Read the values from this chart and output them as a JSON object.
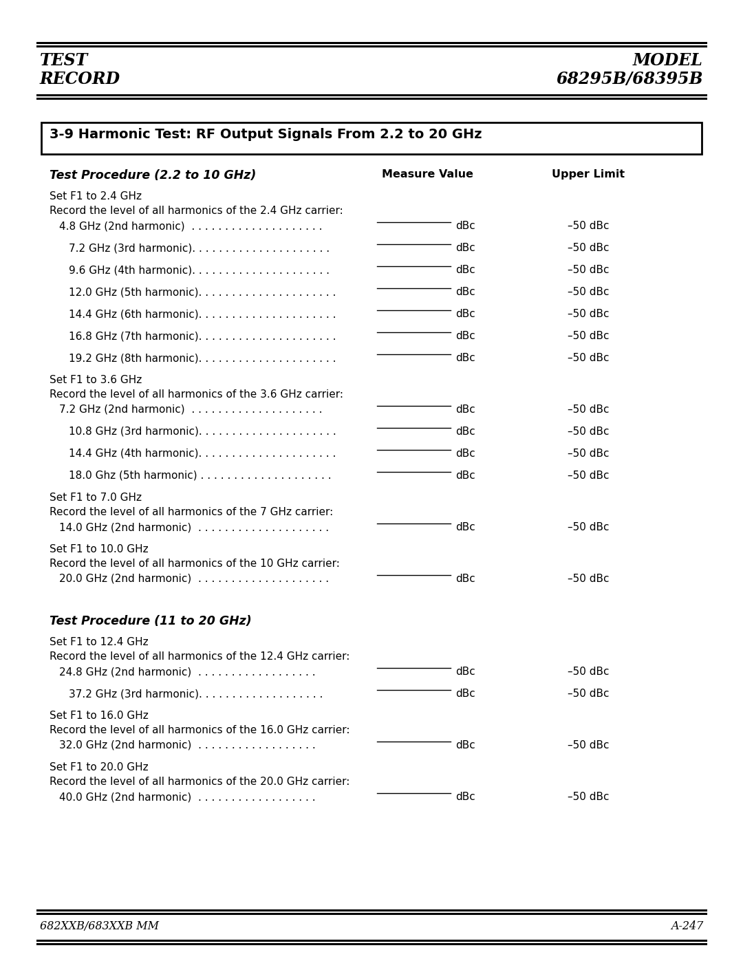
{
  "bg_color": "#ffffff",
  "page_width": 10.8,
  "page_height": 13.97,
  "header": {
    "left_line1": "TEST",
    "left_line2": "RECORD",
    "right_line1": "MODEL",
    "right_line2": "68295B/68395B"
  },
  "footer": {
    "left": "682XXB/683XXB MM",
    "right": "A-247"
  },
  "box_title": "3-9 Harmonic Test: RF Output Signals From 2.2 to 20 GHz",
  "section1_title": "Test Procedure (2.2 to 10 GHz)",
  "col_measure": "Measure Value",
  "col_upper": "Upper Limit",
  "section2_title": "Test Procedure (11 to 20 GHz)",
  "rows": [
    {
      "type": "set",
      "text": "Set F1 to 2.4 GHz"
    },
    {
      "type": "record",
      "text": "Record the level of all harmonics of the 2.4 GHz carrier:"
    },
    {
      "type": "measure",
      "indent": 1,
      "text": "4.8 GHz (2nd harmonic)  . . . . . . . . . . . . . . . . . . . .",
      "upper": "–50 dBc"
    },
    {
      "type": "measure",
      "indent": 2,
      "text": "7.2 GHz (3rd harmonic). . . . . . . . . . . . . . . . . . . . .",
      "upper": "–50 dBc"
    },
    {
      "type": "measure",
      "indent": 2,
      "text": "9.6 GHz (4th harmonic). . . . . . . . . . . . . . . . . . . . .",
      "upper": "–50 dBc"
    },
    {
      "type": "measure",
      "indent": 2,
      "text": "12.0 GHz (5th harmonic). . . . . . . . . . . . . . . . . . . . .",
      "upper": "–50 dBc"
    },
    {
      "type": "measure",
      "indent": 2,
      "text": "14.4 GHz (6th harmonic). . . . . . . . . . . . . . . . . . . . .",
      "upper": "–50 dBc"
    },
    {
      "type": "measure",
      "indent": 2,
      "text": "16.8 GHz (7th harmonic). . . . . . . . . . . . . . . . . . . . .",
      "upper": "–50 dBc"
    },
    {
      "type": "measure",
      "indent": 2,
      "text": "19.2 GHz (8th harmonic). . . . . . . . . . . . . . . . . . . . .",
      "upper": "–50 dBc"
    },
    {
      "type": "set",
      "text": "Set F1 to 3.6 GHz"
    },
    {
      "type": "record",
      "text": "Record the level of all harmonics of the 3.6 GHz carrier:"
    },
    {
      "type": "measure",
      "indent": 1,
      "text": "7.2 GHz (2nd harmonic)  . . . . . . . . . . . . . . . . . . . .",
      "upper": "–50 dBc"
    },
    {
      "type": "measure",
      "indent": 2,
      "text": "10.8 GHz (3rd harmonic). . . . . . . . . . . . . . . . . . . . .",
      "upper": "–50 dBc"
    },
    {
      "type": "measure",
      "indent": 2,
      "text": "14.4 GHz (4th harmonic). . . . . . . . . . . . . . . . . . . . .",
      "upper": "–50 dBc"
    },
    {
      "type": "measure",
      "indent": 2,
      "text": "18.0 Ghz (5th harmonic) . . . . . . . . . . . . . . . . . . . .",
      "upper": "–50 dBc"
    },
    {
      "type": "set",
      "text": "Set F1 to 7.0 GHz"
    },
    {
      "type": "record",
      "text": "Record the level of all harmonics of the 7 GHz carrier:"
    },
    {
      "type": "measure",
      "indent": 1,
      "text": "14.0 GHz (2nd harmonic)  . . . . . . . . . . . . . . . . . . . .",
      "upper": "–50 dBc"
    },
    {
      "type": "set",
      "text": "Set F1 to 10.0 GHz"
    },
    {
      "type": "record",
      "text": "Record the level of all harmonics of the 10 GHz carrier:"
    },
    {
      "type": "measure",
      "indent": 1,
      "text": "20.0 GHz (2nd harmonic)  . . . . . . . . . . . . . . . . . . . .",
      "upper": "–50 dBc"
    }
  ],
  "rows2": [
    {
      "type": "set",
      "text": "Set F1 to 12.4 GHz"
    },
    {
      "type": "record",
      "text": "Record the level of all harmonics of the 12.4 GHz carrier:"
    },
    {
      "type": "measure",
      "indent": 1,
      "text": "24.8 GHz (2nd harmonic)  . . . . . . . . . . . . . . . . . .",
      "upper": "–50 dBc"
    },
    {
      "type": "measure",
      "indent": 2,
      "text": "37.2 GHz (3rd harmonic). . . . . . . . . . . . . . . . . . .",
      "upper": "–50 dBc"
    },
    {
      "type": "set",
      "text": "Set F1 to 16.0 GHz"
    },
    {
      "type": "record",
      "text": "Record the level of all harmonics of the 16.0 GHz carrier:"
    },
    {
      "type": "measure",
      "indent": 1,
      "text": "32.0 GHz (2nd harmonic)  . . . . . . . . . . . . . . . . . .",
      "upper": "–50 dBc"
    },
    {
      "type": "set",
      "text": "Set F1 to 20.0 GHz"
    },
    {
      "type": "record",
      "text": "Record the level of all harmonics of the 20.0 GHz carrier:"
    },
    {
      "type": "measure",
      "indent": 1,
      "text": "40.0 GHz (2nd harmonic)  . . . . . . . . . . . . . . . . . .",
      "upper": "–50 dBc"
    }
  ]
}
